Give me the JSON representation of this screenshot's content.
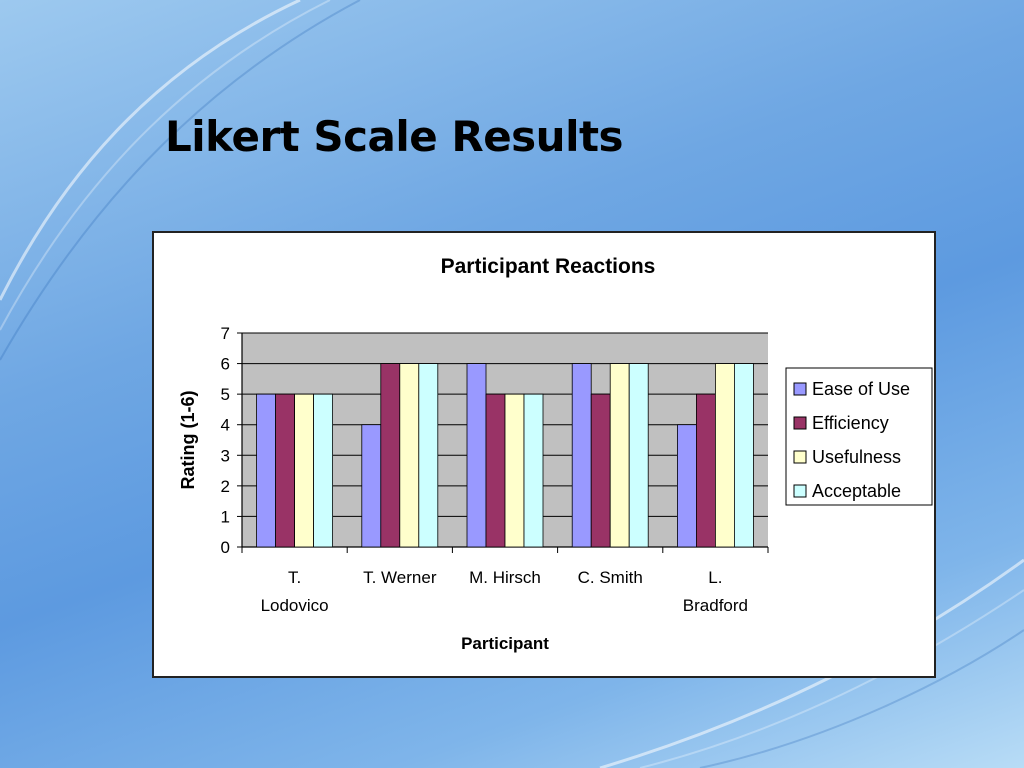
{
  "slide": {
    "title": "Likert Scale Results"
  },
  "colors": {
    "ease_of_use": "#9999ff",
    "efficiency": "#993366",
    "usefulness": "#ffffcc",
    "acceptable": "#ccffff",
    "plot_area": "#c0c0c0"
  },
  "chart_data": {
    "type": "bar",
    "title": "Participant Reactions",
    "xlabel": "Participant",
    "ylabel": "Rating (1-6)",
    "ylim": [
      0,
      7
    ],
    "yticks": [
      0,
      1,
      2,
      3,
      4,
      5,
      6,
      7
    ],
    "grid": true,
    "legend": "right",
    "categories": [
      "T. Lodovico",
      "T. Werner",
      "M. Hirsch",
      "C. Smith",
      "L. Bradford"
    ],
    "category_label_lines": [
      [
        "T.",
        "Lodovico"
      ],
      [
        "T. Werner"
      ],
      [
        "M. Hirsch"
      ],
      [
        "C. Smith"
      ],
      [
        "L.",
        "Bradford"
      ]
    ],
    "series": [
      {
        "name": "Ease of Use",
        "color": "#9999ff",
        "values": [
          5,
          4,
          6,
          6,
          4
        ]
      },
      {
        "name": "Efficiency",
        "color": "#993366",
        "values": [
          5,
          6,
          5,
          5,
          5
        ]
      },
      {
        "name": "Usefulness",
        "color": "#ffffcc",
        "values": [
          5,
          6,
          5,
          6,
          6
        ]
      },
      {
        "name": "Acceptable",
        "color": "#ccffff",
        "values": [
          5,
          6,
          5,
          6,
          6
        ]
      }
    ]
  }
}
